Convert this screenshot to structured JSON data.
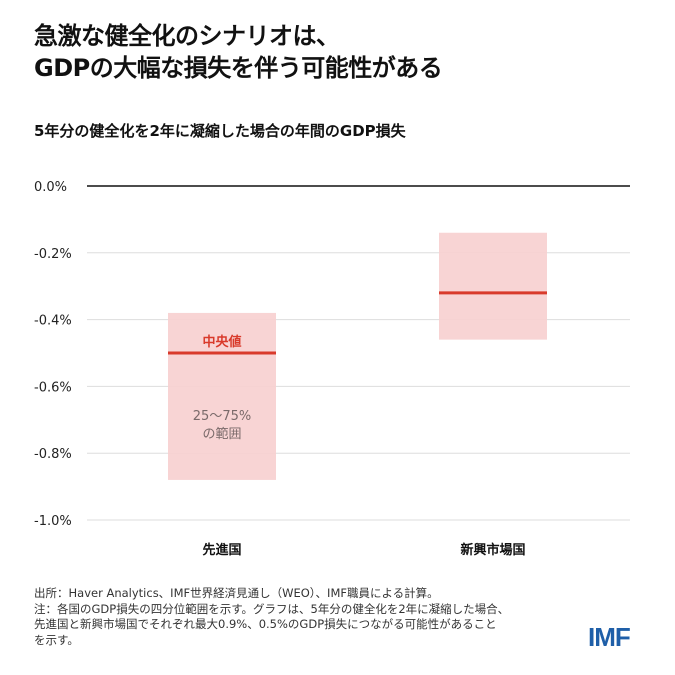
{
  "title_lines": [
    "急激な健全化のシナリオは、",
    "GDPの大幅な損失を伴う可能性がある"
  ],
  "chart_data": {
    "type": "box",
    "title": "5年分の健全化を2年に凝縮した場合の年間のGDP損失",
    "categories": [
      "先進国",
      "新興市場国"
    ],
    "series": [
      {
        "category": "先進国",
        "q25": -0.88,
        "median": -0.5,
        "q75": -0.38
      },
      {
        "category": "新興市場国",
        "q25": -0.46,
        "median": -0.32,
        "q75": -0.14
      }
    ],
    "ylim": [
      -1.0,
      0.0
    ],
    "yticks": [
      0.0,
      -0.2,
      -0.4,
      -0.6,
      -0.8,
      -1.0
    ],
    "ytick_labels": [
      "0.0%",
      "-0.2%",
      "-0.4%",
      "-0.6%",
      "-0.8%",
      "-1.0%"
    ],
    "annotations": {
      "median": "中央値",
      "range": [
        "25〜75%",
        "の範囲"
      ]
    },
    "grid": true,
    "colors": {
      "box": "#f7cfcf",
      "median": "#d93a2b",
      "grid": "#dddddd",
      "zero": "#111111"
    }
  },
  "notes": [
    "出所：Haver Analytics、IMF世界経済見通し（WEO）、IMF職員による計算。",
    "注：各国のGDP損失の四分位範囲を示す。グラフは、5年分の健全化を2年に凝縮した場合、",
    "先進国と新興市場国でそれぞれ最大0.9%、0.5%のGDP損失につながる可能性があること",
    "を示す。"
  ],
  "logo": "IMF"
}
